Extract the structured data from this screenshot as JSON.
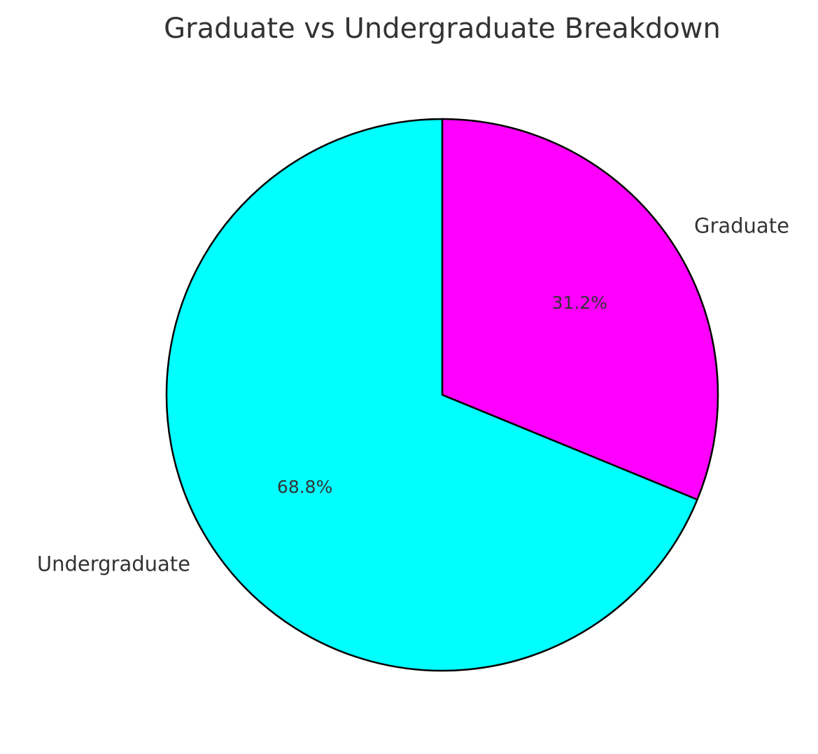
{
  "chart_data": {
    "type": "pie",
    "title": "Graduate vs Undergraduate Breakdown",
    "categories": [
      "Graduate",
      "Undergraduate"
    ],
    "values": [
      31.2,
      68.8
    ],
    "percent_labels": [
      "31.2%",
      "68.8%"
    ],
    "colors": [
      "#ff00ff",
      "#00ffff"
    ],
    "edge_color": "#000000",
    "start_angle": "top, clockwise",
    "legend": "none"
  }
}
